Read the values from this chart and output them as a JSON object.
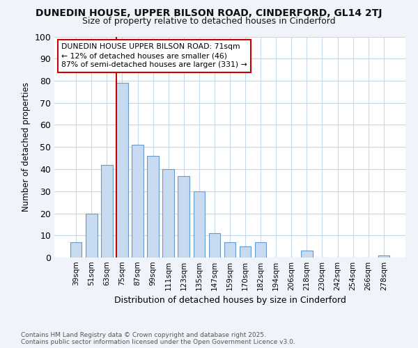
{
  "title": "DUNEDIN HOUSE, UPPER BILSON ROAD, CINDERFORD, GL14 2TJ",
  "subtitle": "Size of property relative to detached houses in Cinderford",
  "xlabel": "Distribution of detached houses by size in Cinderford",
  "ylabel": "Number of detached properties",
  "categories": [
    "39sqm",
    "51sqm",
    "63sqm",
    "75sqm",
    "87sqm",
    "99sqm",
    "111sqm",
    "123sqm",
    "135sqm",
    "147sqm",
    "159sqm",
    "170sqm",
    "182sqm",
    "194sqm",
    "206sqm",
    "218sqm",
    "230sqm",
    "242sqm",
    "254sqm",
    "266sqm",
    "278sqm"
  ],
  "values": [
    7,
    20,
    42,
    79,
    51,
    46,
    40,
    37,
    30,
    11,
    7,
    5,
    7,
    0,
    0,
    3,
    0,
    0,
    0,
    0,
    1
  ],
  "bar_color": "#c8daf0",
  "bar_edge_color": "#6699cc",
  "vline_color": "#cc0000",
  "vline_position": 3,
  "annotation_text": "DUNEDIN HOUSE UPPER BILSON ROAD: 71sqm\n← 12% of detached houses are smaller (46)\n87% of semi-detached houses are larger (331) →",
  "annotation_box_color": "#ffffff",
  "annotation_border_color": "#cc0000",
  "ylim": [
    0,
    100
  ],
  "yticks": [
    0,
    10,
    20,
    30,
    40,
    50,
    60,
    70,
    80,
    90,
    100
  ],
  "plot_bg_color": "#ffffff",
  "fig_bg_color": "#f0f4fa",
  "grid_color": "#c8d8e8",
  "title_color": "#111111",
  "footer_line1": "Contains HM Land Registry data © Crown copyright and database right 2025.",
  "footer_line2": "Contains public sector information licensed under the Open Government Licence v3.0."
}
